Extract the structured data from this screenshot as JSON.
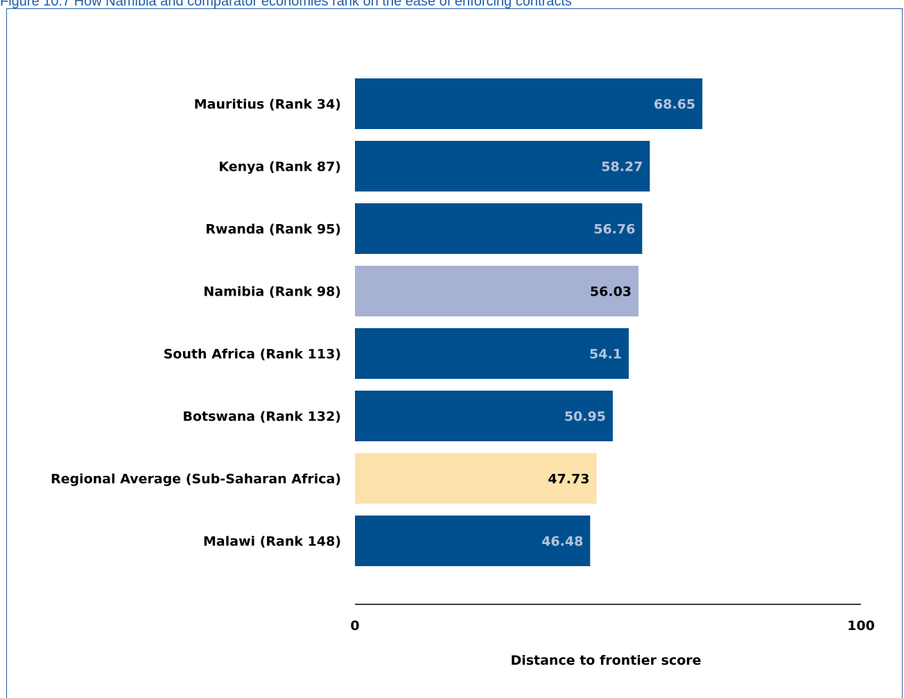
{
  "figure_title": "Figure 10.7 How Namibia and comparator economies rank on the ease of enforcing contracts",
  "colors": {
    "default_bar": "#00508f",
    "highlight_bar": "#a6b1d3",
    "regional_bar": "#fde1ab",
    "default_value_text": "#b7c3dc",
    "highlight_value_text": "#000000",
    "frame": "#1f5fa3"
  },
  "chart_data": {
    "type": "bar",
    "orientation": "horizontal",
    "categories": [
      "Mauritius (Rank 34)",
      "Kenya (Rank 87)",
      "Rwanda (Rank 95)",
      "Namibia (Rank 98)",
      "South Africa (Rank 113)",
      "Botswana (Rank 132)",
      "Regional Average (Sub-Saharan Africa)",
      "Malawi (Rank 148)"
    ],
    "values": [
      68.65,
      58.27,
      56.76,
      56.03,
      54.1,
      50.95,
      47.73,
      46.48
    ],
    "value_labels": [
      "68.65",
      "58.27",
      "56.76",
      "56.03",
      "54.1",
      "50.95",
      "47.73",
      "46.48"
    ],
    "highlight": [
      "default",
      "default",
      "default",
      "highlight",
      "default",
      "default",
      "regional",
      "default"
    ],
    "xlim": [
      0,
      100
    ],
    "xticks": [
      "0",
      "100"
    ],
    "xlabel": "Distance to frontier score",
    "grid": false,
    "legend": "none"
  }
}
